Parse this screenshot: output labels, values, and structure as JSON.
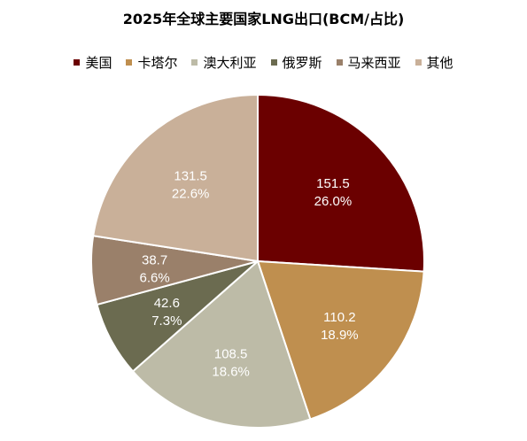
{
  "chart_data": {
    "type": "pie",
    "title": "2025年全球主要国家LNG出口(BCM/占比)",
    "legend_position": "top",
    "categories": [
      "美国",
      "卡塔尔",
      "澳大利亚",
      "俄罗斯",
      "马来西亚",
      "其他"
    ],
    "values": [
      151.5,
      110.2,
      108.5,
      42.6,
      38.7,
      131.5
    ],
    "value_labels": [
      "151.5",
      "110.2",
      "108.5",
      "42.6",
      "38.7",
      "131.5"
    ],
    "percent_labels": [
      "26.0%",
      "18.9%",
      "18.6%",
      "7.3%",
      "6.6%",
      "22.6%"
    ],
    "colors": [
      "#6b0000",
      "#bf8f4f",
      "#bdbba7",
      "#6b6b50",
      "#9a806a",
      "#c9b099"
    ],
    "start_angle_deg": 0,
    "direction": "clockwise"
  }
}
